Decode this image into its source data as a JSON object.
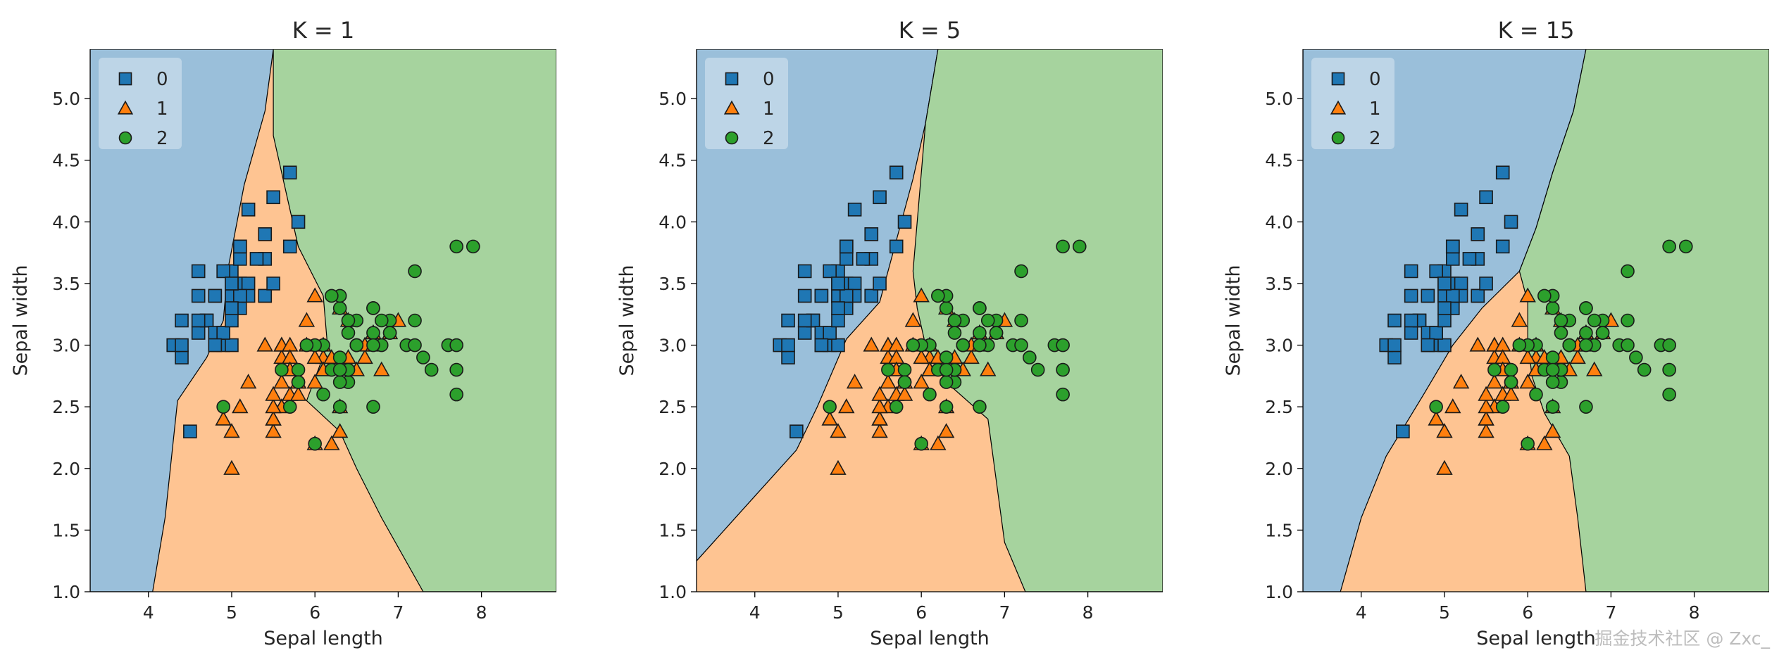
{
  "colors": {
    "class0_fill": "#9ABFDA",
    "class1_fill": "#FEC492",
    "class2_fill": "#A6D39E",
    "class0_marker": "#1F77B4",
    "class1_marker": "#FF7F0E",
    "class2_marker": "#2CA02C"
  },
  "watermark": "掘金技术社区 @ Zxc_",
  "chart_data": [
    {
      "type": "scatter",
      "title": "K = 1",
      "xlabel": "Sepal length",
      "ylabel": "Sepal width",
      "xlim": [
        3.3,
        8.9
      ],
      "ylim": [
        1.0,
        5.4
      ],
      "xticks": [
        "4",
        "5",
        "6",
        "7",
        "8"
      ],
      "yticks": [
        "1.0",
        "1.5",
        "2.0",
        "2.5",
        "3.0",
        "3.5",
        "4.0",
        "4.5",
        "5.0"
      ],
      "legend": {
        "position": "upper-left",
        "entries": [
          "0",
          "1",
          "2"
        ]
      },
      "decision_regions": {
        "region0": [
          [
            3.3,
            5.4
          ],
          [
            5.5,
            5.4
          ],
          [
            5.4,
            4.9
          ],
          [
            5.15,
            4.3
          ],
          [
            4.95,
            3.6
          ],
          [
            4.9,
            3.2
          ],
          [
            4.7,
            2.9
          ],
          [
            4.35,
            2.55
          ],
          [
            4.2,
            1.6
          ],
          [
            4.05,
            1.0
          ],
          [
            3.3,
            1.0
          ]
        ],
        "region2": [
          [
            5.5,
            5.4
          ],
          [
            8.9,
            5.4
          ],
          [
            8.9,
            1.0
          ],
          [
            7.3,
            1.0
          ],
          [
            6.8,
            1.6
          ],
          [
            6.5,
            2.0
          ],
          [
            6.3,
            2.3
          ],
          [
            5.9,
            2.55
          ],
          [
            6.15,
            3.0
          ],
          [
            6.1,
            3.4
          ],
          [
            5.8,
            3.8
          ],
          [
            5.5,
            4.7
          ]
        ]
      }
    },
    {
      "type": "scatter",
      "title": "K = 5",
      "xlabel": "Sepal length",
      "ylabel": "Sepal width",
      "xlim": [
        3.3,
        8.9
      ],
      "ylim": [
        1.0,
        5.4
      ],
      "xticks": [
        "4",
        "5",
        "6",
        "7",
        "8"
      ],
      "yticks": [
        "1.0",
        "1.5",
        "2.0",
        "2.5",
        "3.0",
        "3.5",
        "4.0",
        "4.5",
        "5.0"
      ],
      "legend": {
        "position": "upper-left",
        "entries": [
          "0",
          "1",
          "2"
        ]
      },
      "decision_regions": {
        "region0": [
          [
            3.3,
            5.4
          ],
          [
            6.2,
            5.4
          ],
          [
            6.05,
            4.8
          ],
          [
            5.9,
            4.35
          ],
          [
            5.7,
            3.85
          ],
          [
            5.5,
            3.35
          ],
          [
            5.1,
            3.05
          ],
          [
            4.75,
            2.5
          ],
          [
            4.5,
            2.15
          ],
          [
            3.9,
            1.7
          ],
          [
            3.3,
            1.25
          ]
        ],
        "region2": [
          [
            6.2,
            5.4
          ],
          [
            8.9,
            5.4
          ],
          [
            8.9,
            1.0
          ],
          [
            7.25,
            1.0
          ],
          [
            7.0,
            1.4
          ],
          [
            6.9,
            1.9
          ],
          [
            6.8,
            2.4
          ],
          [
            6.3,
            2.7
          ],
          [
            6.05,
            3.0
          ],
          [
            5.95,
            3.3
          ],
          [
            5.9,
            3.6
          ],
          [
            5.95,
            4.0
          ],
          [
            6.05,
            4.8
          ]
        ]
      }
    },
    {
      "type": "scatter",
      "title": "K = 15",
      "xlabel": "Sepal length",
      "ylabel": "Sepal width",
      "xlim": [
        3.3,
        8.9
      ],
      "ylim": [
        1.0,
        5.4
      ],
      "xticks": [
        "4",
        "5",
        "6",
        "7",
        "8"
      ],
      "yticks": [
        "1.0",
        "1.5",
        "2.0",
        "2.5",
        "3.0",
        "3.5",
        "4.0",
        "4.5",
        "5.0"
      ],
      "legend": {
        "position": "upper-left",
        "entries": [
          "0",
          "1",
          "2"
        ]
      },
      "decision_regions": {
        "region0": [
          [
            3.3,
            5.4
          ],
          [
            6.7,
            5.4
          ],
          [
            6.55,
            4.9
          ],
          [
            6.3,
            4.4
          ],
          [
            6.1,
            3.95
          ],
          [
            5.9,
            3.6
          ],
          [
            5.45,
            3.3
          ],
          [
            5.1,
            3.0
          ],
          [
            4.75,
            2.6
          ],
          [
            4.3,
            2.1
          ],
          [
            4.0,
            1.6
          ],
          [
            3.75,
            1.0
          ],
          [
            3.3,
            1.0
          ]
        ],
        "region2": [
          [
            6.7,
            5.4
          ],
          [
            8.9,
            5.4
          ],
          [
            8.9,
            1.0
          ],
          [
            6.7,
            1.0
          ],
          [
            6.6,
            1.6
          ],
          [
            6.5,
            2.1
          ],
          [
            6.2,
            2.45
          ],
          [
            6.05,
            2.75
          ],
          [
            6.0,
            3.05
          ],
          [
            6.0,
            3.35
          ],
          [
            5.9,
            3.6
          ],
          [
            6.1,
            3.95
          ],
          [
            6.3,
            4.4
          ],
          [
            6.55,
            4.9
          ]
        ]
      }
    }
  ],
  "iris_points": {
    "class0": [
      [
        5.1,
        3.5
      ],
      [
        4.9,
        3.0
      ],
      [
        4.7,
        3.2
      ],
      [
        4.6,
        3.1
      ],
      [
        5.0,
        3.6
      ],
      [
        5.4,
        3.9
      ],
      [
        4.6,
        3.4
      ],
      [
        5.0,
        3.4
      ],
      [
        4.4,
        2.9
      ],
      [
        4.9,
        3.1
      ],
      [
        5.4,
        3.7
      ],
      [
        4.8,
        3.4
      ],
      [
        4.8,
        3.0
      ],
      [
        4.3,
        3.0
      ],
      [
        5.8,
        4.0
      ],
      [
        5.7,
        4.4
      ],
      [
        5.4,
        3.9
      ],
      [
        5.1,
        3.5
      ],
      [
        5.7,
        3.8
      ],
      [
        5.1,
        3.8
      ],
      [
        5.4,
        3.4
      ],
      [
        5.1,
        3.7
      ],
      [
        4.6,
        3.6
      ],
      [
        5.1,
        3.3
      ],
      [
        4.8,
        3.4
      ],
      [
        5.0,
        3.0
      ],
      [
        5.0,
        3.4
      ],
      [
        5.2,
        3.5
      ],
      [
        5.2,
        3.4
      ],
      [
        4.7,
        3.2
      ],
      [
        4.8,
        3.1
      ],
      [
        5.4,
        3.4
      ],
      [
        5.2,
        4.1
      ],
      [
        5.5,
        4.2
      ],
      [
        4.9,
        3.1
      ],
      [
        5.0,
        3.2
      ],
      [
        5.5,
        3.5
      ],
      [
        4.9,
        3.6
      ],
      [
        4.4,
        3.0
      ],
      [
        5.1,
        3.4
      ],
      [
        5.0,
        3.5
      ],
      [
        4.5,
        2.3
      ],
      [
        4.4,
        3.2
      ],
      [
        5.0,
        3.5
      ],
      [
        5.1,
        3.8
      ],
      [
        4.8,
        3.0
      ],
      [
        5.1,
        3.8
      ],
      [
        4.6,
        3.2
      ],
      [
        5.3,
        3.7
      ],
      [
        5.0,
        3.3
      ]
    ],
    "class1": [
      [
        7.0,
        3.2
      ],
      [
        6.4,
        3.2
      ],
      [
        6.9,
        3.1
      ],
      [
        5.5,
        2.3
      ],
      [
        6.5,
        2.8
      ],
      [
        5.7,
        2.8
      ],
      [
        6.3,
        3.3
      ],
      [
        4.9,
        2.4
      ],
      [
        6.6,
        2.9
      ],
      [
        5.2,
        2.7
      ],
      [
        5.0,
        2.0
      ],
      [
        5.9,
        3.0
      ],
      [
        6.0,
        2.2
      ],
      [
        6.1,
        2.9
      ],
      [
        5.6,
        2.9
      ],
      [
        6.7,
        3.1
      ],
      [
        5.6,
        3.0
      ],
      [
        5.8,
        2.7
      ],
      [
        6.2,
        2.2
      ],
      [
        5.6,
        2.5
      ],
      [
        5.9,
        3.2
      ],
      [
        6.1,
        2.8
      ],
      [
        6.3,
        2.5
      ],
      [
        6.1,
        2.8
      ],
      [
        6.4,
        2.9
      ],
      [
        6.6,
        3.0
      ],
      [
        6.8,
        2.8
      ],
      [
        6.7,
        3.0
      ],
      [
        6.0,
        2.9
      ],
      [
        5.7,
        2.6
      ],
      [
        5.5,
        2.4
      ],
      [
        5.5,
        2.4
      ],
      [
        5.8,
        2.7
      ],
      [
        6.0,
        2.7
      ],
      [
        5.4,
        3.0
      ],
      [
        6.0,
        3.4
      ],
      [
        6.7,
        3.1
      ],
      [
        6.3,
        2.3
      ],
      [
        5.6,
        3.0
      ],
      [
        5.5,
        2.5
      ],
      [
        5.5,
        2.6
      ],
      [
        6.1,
        3.0
      ],
      [
        5.8,
        2.6
      ],
      [
        5.0,
        2.3
      ],
      [
        5.6,
        2.7
      ],
      [
        5.7,
        3.0
      ],
      [
        5.7,
        2.9
      ],
      [
        6.2,
        2.9
      ],
      [
        5.1,
        2.5
      ],
      [
        5.7,
        2.8
      ]
    ],
    "class2": [
      [
        6.3,
        3.3
      ],
      [
        5.8,
        2.7
      ],
      [
        7.1,
        3.0
      ],
      [
        6.3,
        2.9
      ],
      [
        6.5,
        3.0
      ],
      [
        7.6,
        3.0
      ],
      [
        4.9,
        2.5
      ],
      [
        7.3,
        2.9
      ],
      [
        6.7,
        2.5
      ],
      [
        7.2,
        3.6
      ],
      [
        6.5,
        3.2
      ],
      [
        6.4,
        2.7
      ],
      [
        6.8,
        3.0
      ],
      [
        5.7,
        2.5
      ],
      [
        5.8,
        2.8
      ],
      [
        6.4,
        3.2
      ],
      [
        6.5,
        3.0
      ],
      [
        7.7,
        3.8
      ],
      [
        7.7,
        2.6
      ],
      [
        6.0,
        2.2
      ],
      [
        6.9,
        3.2
      ],
      [
        5.6,
        2.8
      ],
      [
        7.7,
        2.8
      ],
      [
        6.3,
        2.7
      ],
      [
        6.7,
        3.3
      ],
      [
        7.2,
        3.2
      ],
      [
        6.2,
        2.8
      ],
      [
        6.1,
        3.0
      ],
      [
        6.4,
        2.8
      ],
      [
        7.2,
        3.0
      ],
      [
        7.4,
        2.8
      ],
      [
        7.9,
        3.8
      ],
      [
        6.4,
        2.8
      ],
      [
        6.3,
        2.8
      ],
      [
        6.1,
        2.6
      ],
      [
        7.7,
        3.0
      ],
      [
        6.3,
        3.4
      ],
      [
        6.4,
        3.1
      ],
      [
        6.0,
        3.0
      ],
      [
        6.9,
        3.1
      ],
      [
        6.7,
        3.1
      ],
      [
        6.9,
        3.1
      ],
      [
        5.8,
        2.7
      ],
      [
        6.8,
        3.2
      ],
      [
        6.7,
        3.3
      ],
      [
        6.7,
        3.0
      ],
      [
        6.3,
        2.5
      ],
      [
        6.5,
        3.0
      ],
      [
        6.2,
        3.4
      ],
      [
        5.9,
        3.0
      ]
    ]
  }
}
